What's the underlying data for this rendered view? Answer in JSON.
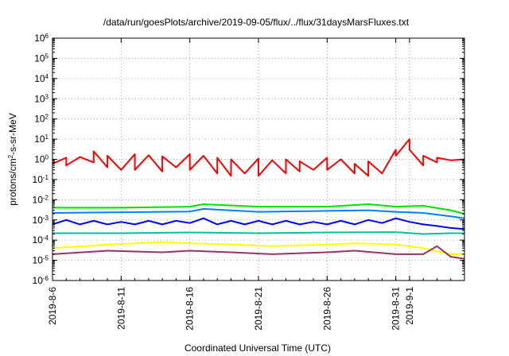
{
  "chart_data": {
    "type": "line",
    "title": "/data/run/goesPlots/archive/2019-09-05/flux/../flux/31daysMarsFluxes.txt",
    "xlabel": "Coordinated Universal Time (UTC)",
    "ylabel": "protons/cm²-s-sr-MeV",
    "ylabel_parts": {
      "base": "protons/cm",
      "sup": "2",
      "rest": "-s-sr-MeV"
    },
    "xscale": "time",
    "yscale": "log",
    "xlim": [
      "2019-08-06",
      "2019-09-05"
    ],
    "ylim": [
      1e-06,
      1000000.0
    ],
    "grid": true,
    "legend": "none",
    "x_ticks": [
      "2019-8-6",
      "2019-8-11",
      "2019-8-16",
      "2019-8-21",
      "2019-8-26",
      "2019-8-31",
      "2019-9-1"
    ],
    "y_ticks": [
      {
        "base": "10",
        "exp": "-6"
      },
      {
        "base": "10",
        "exp": "-5"
      },
      {
        "base": "10",
        "exp": "-4"
      },
      {
        "base": "10",
        "exp": "-3"
      },
      {
        "base": "10",
        "exp": "-2"
      },
      {
        "base": "10",
        "exp": "-1"
      },
      {
        "base": "10",
        "exp": "0"
      },
      {
        "base": "10",
        "exp": "1"
      },
      {
        "base": "10",
        "exp": "2"
      },
      {
        "base": "10",
        "exp": "3"
      },
      {
        "base": "10",
        "exp": "4"
      },
      {
        "base": "10",
        "exp": "5"
      },
      {
        "base": "10",
        "exp": "6"
      }
    ],
    "series": [
      {
        "color": "#ff0000",
        "x": [
          "2019-08-06",
          "2019-08-07",
          "2019-08-07",
          "2019-08-08",
          "2019-08-09",
          "2019-08-09",
          "2019-08-10",
          "2019-08-10",
          "2019-08-11",
          "2019-08-12",
          "2019-08-12",
          "2019-08-13",
          "2019-08-14",
          "2019-08-14",
          "2019-08-15",
          "2019-08-16",
          "2019-08-16",
          "2019-08-17",
          "2019-08-18",
          "2019-08-18",
          "2019-08-19",
          "2019-08-19",
          "2019-08-20",
          "2019-08-21",
          "2019-08-21",
          "2019-08-22",
          "2019-08-23",
          "2019-08-23",
          "2019-08-24",
          "2019-08-24",
          "2019-08-25",
          "2019-08-26",
          "2019-08-26",
          "2019-08-27",
          "2019-08-28",
          "2019-08-28",
          "2019-08-29",
          "2019-08-29",
          "2019-08-30",
          "2019-08-31",
          "2019-08-31",
          "2019-09-01",
          "2019-09-01",
          "2019-09-02",
          "2019-09-02",
          "2019-09-03",
          "2019-09-03",
          "2019-09-04",
          "2019-09-05"
        ],
        "values": [
          0.6,
          1.2,
          0.5,
          1.3,
          0.7,
          2.5,
          0.4,
          1.5,
          0.3,
          1.8,
          0.3,
          1.6,
          0.25,
          1.4,
          0.4,
          1.8,
          0.3,
          1.5,
          0.2,
          1.2,
          0.15,
          1.0,
          0.2,
          1.1,
          0.15,
          0.9,
          0.2,
          1.0,
          0.25,
          0.8,
          0.3,
          1.2,
          0.3,
          1.0,
          0.2,
          0.6,
          0.15,
          0.8,
          0.2,
          3.0,
          1.5,
          10.0,
          3.0,
          0.5,
          1.5,
          0.7,
          1.2,
          0.9,
          1.0
        ]
      },
      {
        "color": "#00e000",
        "x": [
          "2019-08-06",
          "2019-08-11",
          "2019-08-16",
          "2019-08-17",
          "2019-08-21",
          "2019-08-26",
          "2019-08-29",
          "2019-08-31",
          "2019-09-02",
          "2019-09-04",
          "2019-09-05"
        ],
        "values": [
          0.004,
          0.004,
          0.0045,
          0.006,
          0.0045,
          0.0045,
          0.006,
          0.0045,
          0.005,
          0.003,
          0.002
        ]
      },
      {
        "color": "#0080ff",
        "x": [
          "2019-08-06",
          "2019-08-11",
          "2019-08-16",
          "2019-08-17",
          "2019-08-21",
          "2019-08-26",
          "2019-08-29",
          "2019-08-31",
          "2019-09-02",
          "2019-09-04",
          "2019-09-05"
        ],
        "values": [
          0.0022,
          0.0024,
          0.0026,
          0.0035,
          0.0025,
          0.0028,
          0.003,
          0.0025,
          0.0022,
          0.0015,
          0.0012
        ]
      },
      {
        "color": "#0000ff",
        "x": [
          "2019-08-06",
          "2019-08-07",
          "2019-08-08",
          "2019-08-09",
          "2019-08-10",
          "2019-08-11",
          "2019-08-12",
          "2019-08-13",
          "2019-08-14",
          "2019-08-15",
          "2019-08-16",
          "2019-08-17",
          "2019-08-18",
          "2019-08-19",
          "2019-08-20",
          "2019-08-21",
          "2019-08-22",
          "2019-08-23",
          "2019-08-24",
          "2019-08-25",
          "2019-08-26",
          "2019-08-27",
          "2019-08-28",
          "2019-08-29",
          "2019-08-30",
          "2019-08-31",
          "2019-09-01",
          "2019-09-02",
          "2019-09-03",
          "2019-09-04",
          "2019-09-05"
        ],
        "values": [
          0.0006,
          0.001,
          0.0006,
          0.0009,
          0.0006,
          0.0008,
          0.0006,
          0.0009,
          0.0006,
          0.0009,
          0.0007,
          0.0012,
          0.0006,
          0.0009,
          0.0006,
          0.0009,
          0.0006,
          0.0009,
          0.0006,
          0.0008,
          0.0006,
          0.0009,
          0.0006,
          0.001,
          0.0007,
          0.0012,
          0.0008,
          0.0006,
          0.0005,
          0.0004,
          0.00035
        ]
      },
      {
        "color": "#00c0a0",
        "x": [
          "2019-08-06",
          "2019-08-11",
          "2019-08-16",
          "2019-08-21",
          "2019-08-26",
          "2019-08-31",
          "2019-09-02",
          "2019-09-04",
          "2019-09-05"
        ],
        "values": [
          0.00022,
          0.00022,
          0.00024,
          0.00022,
          0.00024,
          0.00025,
          0.0002,
          0.00022,
          0.00022
        ]
      },
      {
        "color": "#ffff00",
        "x": [
          "2019-08-06",
          "2019-08-10",
          "2019-08-14",
          "2019-08-16",
          "2019-08-19",
          "2019-08-22",
          "2019-08-26",
          "2019-08-28",
          "2019-08-31",
          "2019-09-02",
          "2019-09-04",
          "2019-09-05"
        ],
        "values": [
          4e-05,
          6e-05,
          8e-05,
          7e-05,
          6e-05,
          5e-05,
          6e-05,
          7e-05,
          6e-05,
          4e-05,
          2e-05,
          2e-05
        ]
      },
      {
        "color": "#993366",
        "x": [
          "2019-08-06",
          "2019-08-10",
          "2019-08-14",
          "2019-08-16",
          "2019-08-19",
          "2019-08-22",
          "2019-08-26",
          "2019-08-28",
          "2019-08-31",
          "2019-09-02",
          "2019-09-03",
          "2019-09-04",
          "2019-09-05"
        ],
        "values": [
          2e-05,
          3e-05,
          2.5e-05,
          3e-05,
          2.5e-05,
          2e-05,
          2.5e-05,
          3e-05,
          2e-05,
          2e-05,
          5e-05,
          1.5e-05,
          1.2e-05
        ]
      }
    ]
  }
}
